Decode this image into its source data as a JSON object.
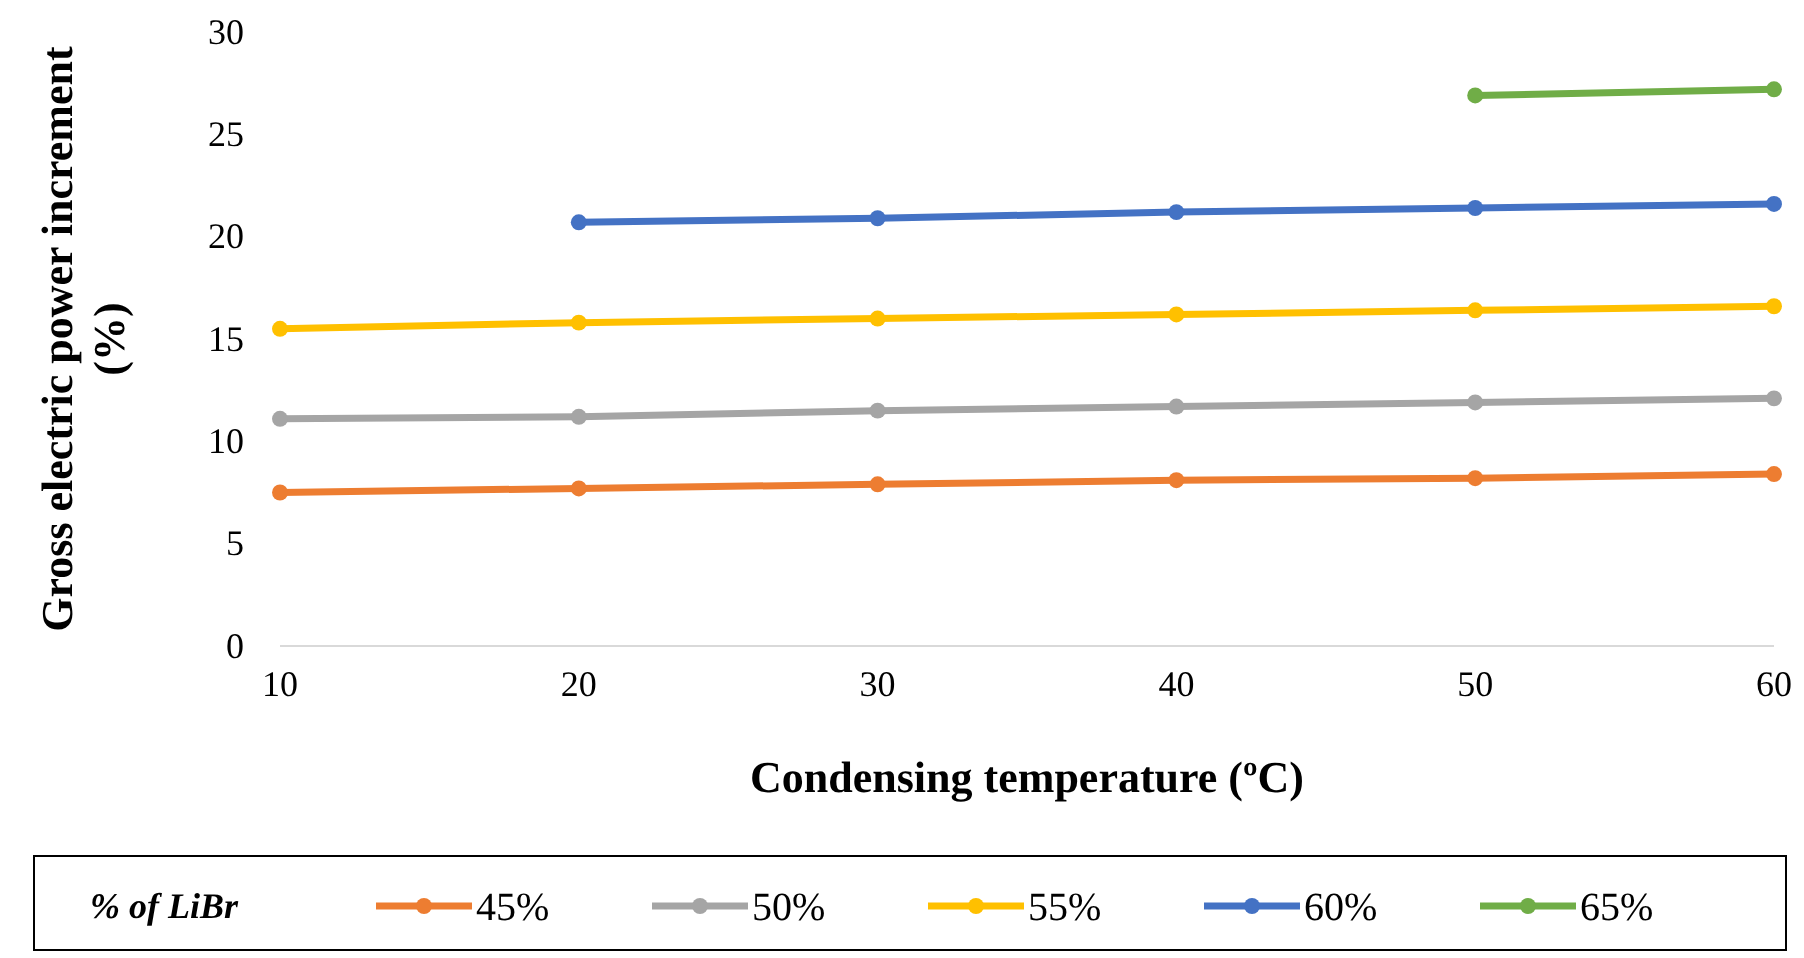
{
  "chart_data": {
    "type": "line",
    "xlabel": "Condensing temperature (ºC)",
    "ylabel": "Gross electric power increment (%)",
    "legend_title": "% of LiBr",
    "x": [
      10,
      20,
      30,
      40,
      50,
      60
    ],
    "xlim": [
      10,
      60
    ],
    "xticks": [
      10,
      20,
      30,
      40,
      50,
      60
    ],
    "ylim": [
      0,
      30
    ],
    "yticks": [
      0,
      5,
      10,
      15,
      20,
      25,
      30
    ],
    "grid": false,
    "legend": "bottom",
    "marker": "circle",
    "line_style": "solid",
    "series": [
      {
        "name": "45%",
        "color": "#ed7d31",
        "values": [
          7.5,
          7.7,
          7.9,
          8.1,
          8.2,
          8.4
        ]
      },
      {
        "name": "50%",
        "color": "#a5a5a5",
        "values": [
          11.1,
          11.2,
          11.5,
          11.7,
          11.9,
          12.1
        ]
      },
      {
        "name": "55%",
        "color": "#ffc000",
        "values": [
          15.5,
          15.8,
          16.0,
          16.2,
          16.4,
          16.6
        ]
      },
      {
        "name": "60%",
        "color": "#4472c4",
        "values": [
          null,
          20.7,
          20.9,
          21.2,
          21.4,
          21.6
        ]
      },
      {
        "name": "65%",
        "color": "#70ad47",
        "values": [
          null,
          null,
          null,
          null,
          26.9,
          27.2
        ]
      }
    ]
  }
}
